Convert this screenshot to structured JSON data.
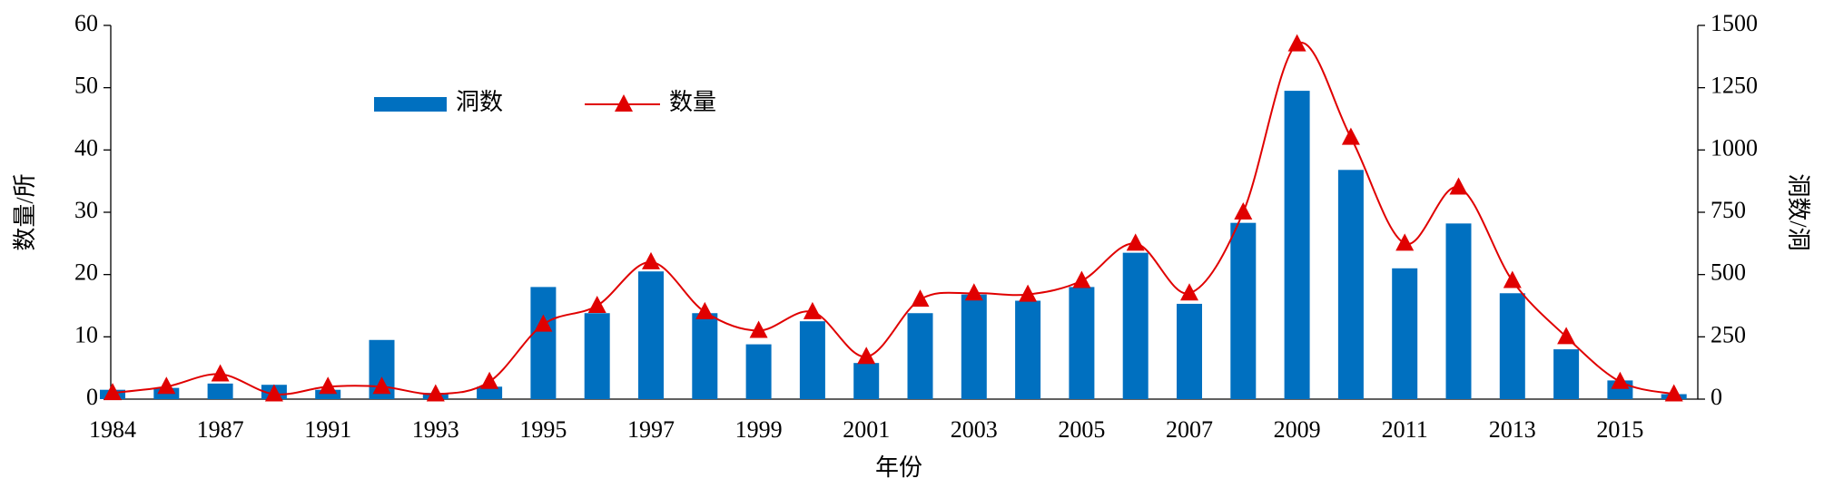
{
  "chart_data": {
    "type": "bar-line",
    "x_label": "年份",
    "y_label": "数量/所",
    "y2_label": "洞数/洞",
    "categories": [
      "1984",
      null,
      "1987",
      null,
      "1991",
      null,
      "1993",
      null,
      "1995",
      null,
      "1997",
      null,
      "1999",
      null,
      "2001",
      null,
      "2003",
      null,
      "2005",
      null,
      "2007",
      null,
      "2009",
      null,
      "2011",
      null,
      "2013",
      null,
      "2015",
      null
    ],
    "series": [
      {
        "name": "洞数",
        "type": "bar",
        "color": "#0070c0",
        "values": [
          1.5,
          1.8,
          2.5,
          2.3,
          1.5,
          9.5,
          1,
          2,
          18,
          13.8,
          20.5,
          13.8,
          8.8,
          12.5,
          5.8,
          13.8,
          16.8,
          15.8,
          18,
          23.5,
          15.3,
          28.3,
          49.5,
          36.8,
          21,
          28.2,
          17,
          8,
          3,
          0.8
        ]
      },
      {
        "name": "数量",
        "type": "line",
        "axis": "y2",
        "color": "#e00000",
        "values": [
          25,
          50,
          100,
          20,
          50,
          50,
          20,
          70,
          300,
          375,
          550,
          350,
          275,
          350,
          170,
          400,
          425,
          420,
          475,
          625,
          425,
          750,
          1425,
          1050,
          625,
          850,
          475,
          250,
          70,
          20
        ]
      }
    ],
    "ylim": [
      0,
      60
    ],
    "yticks": [
      0,
      10,
      20,
      30,
      40,
      50,
      60
    ],
    "y2lim": [
      0,
      1500
    ],
    "y2ticks": [
      0,
      250,
      500,
      750,
      1000,
      1250,
      1500
    ],
    "legend": "top-left"
  }
}
